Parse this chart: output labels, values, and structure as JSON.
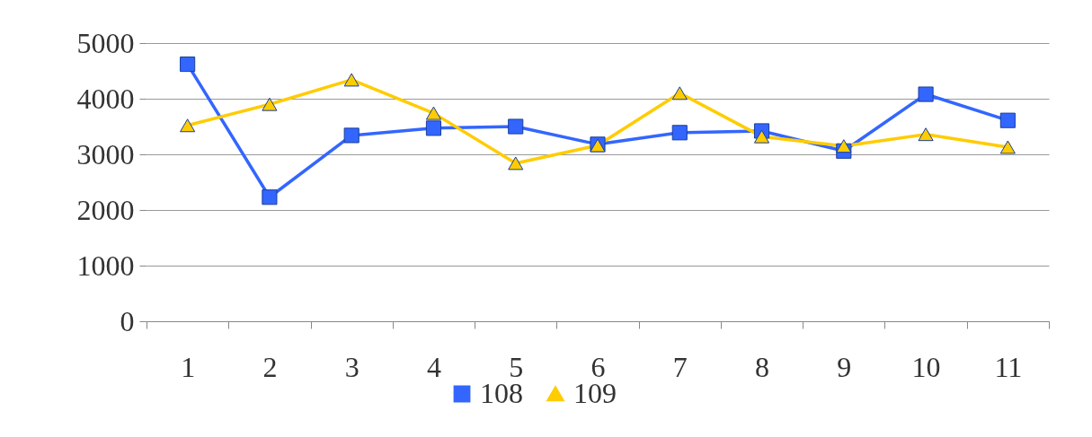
{
  "chart_data": {
    "type": "line",
    "categories": [
      "1",
      "2",
      "3",
      "4",
      "5",
      "6",
      "7",
      "8",
      "9",
      "10",
      "11"
    ],
    "series": [
      {
        "name": "108",
        "color": "#3366ff",
        "marker": "square",
        "values": [
          4620,
          2230,
          3340,
          3470,
          3500,
          3180,
          3390,
          3420,
          3060,
          4080,
          3610
        ]
      },
      {
        "name": "109",
        "color": "#ffcc00",
        "marker": "triangle",
        "values": [
          3520,
          3900,
          4340,
          3740,
          2840,
          3160,
          4100,
          3320,
          3150,
          3360,
          3130
        ]
      }
    ],
    "ylim": [
      0,
      5000
    ],
    "yticks": [
      0,
      1000,
      2000,
      3000,
      4000,
      5000
    ],
    "grid": "y",
    "legend": "bottom"
  }
}
